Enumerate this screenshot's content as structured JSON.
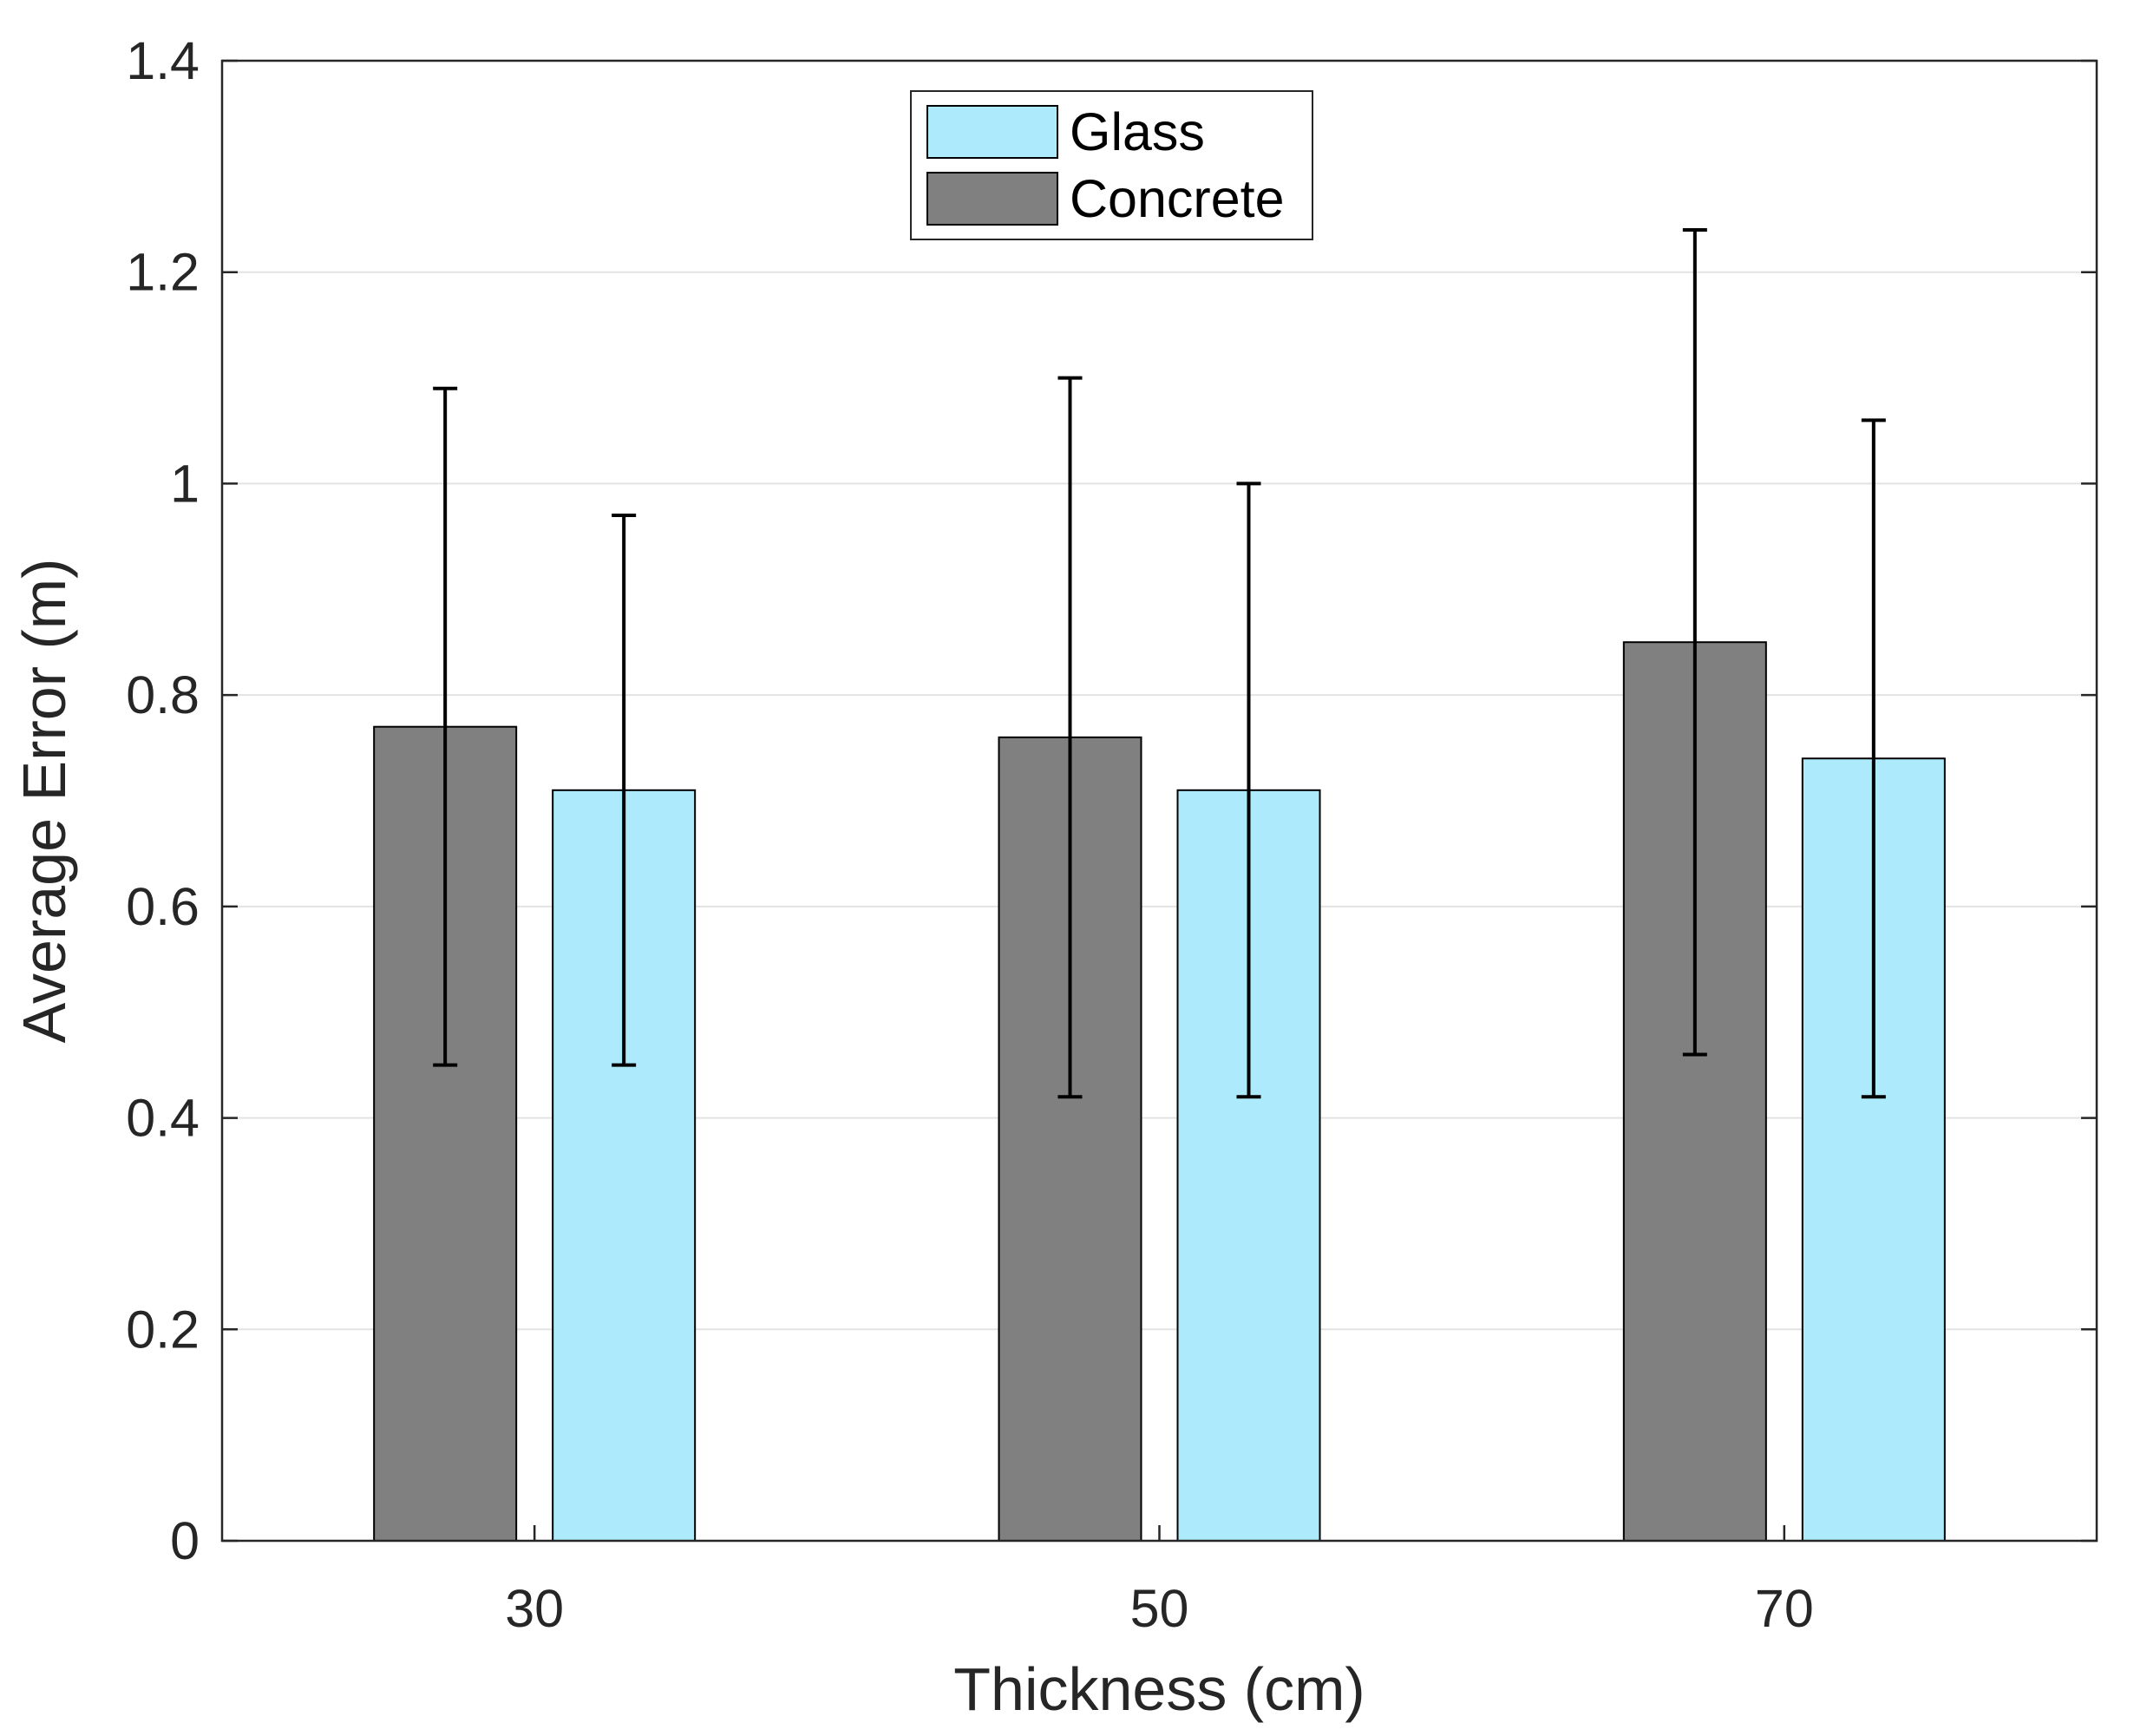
{
  "chart_data": {
    "type": "bar",
    "title": "",
    "xlabel": "Thickness (cm)",
    "ylabel": "Average Error (m)",
    "categories": [
      "30",
      "50",
      "70"
    ],
    "series": [
      {
        "name": "Concrete",
        "color": "#808080",
        "values": [
          0.77,
          0.76,
          0.85
        ],
        "err_low": [
          0.45,
          0.42,
          0.46
        ],
        "err_high": [
          1.09,
          1.1,
          1.24
        ]
      },
      {
        "name": "Glass",
        "color": "#ADEBFC",
        "values": [
          0.71,
          0.71,
          0.74
        ],
        "err_low": [
          0.45,
          0.42,
          0.42
        ],
        "err_high": [
          0.97,
          1.0,
          1.06
        ]
      }
    ],
    "legend_order": [
      "Glass",
      "Concrete"
    ],
    "legend_position": "top-center",
    "ylim": [
      0,
      1.4
    ],
    "yticks": [
      0,
      0.2,
      0.4,
      0.6,
      0.8,
      1,
      1.2,
      1.4
    ],
    "ytick_labels": [
      "0",
      "0.2",
      "0.4",
      "0.6",
      "0.8",
      "1",
      "1.2",
      "1.4"
    ],
    "grid": "horizontal"
  }
}
